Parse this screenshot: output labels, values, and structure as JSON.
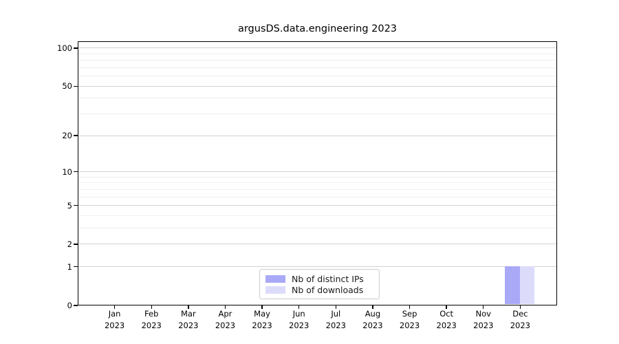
{
  "chart_data": {
    "type": "bar",
    "title": "argusDS.data.engineering 2023",
    "categories": [
      "Jan",
      "Feb",
      "Mar",
      "Apr",
      "May",
      "Jun",
      "Jul",
      "Aug",
      "Sep",
      "Oct",
      "Nov",
      "Dec"
    ],
    "category_year": "2023",
    "series": [
      {
        "name": "Nb of distinct IPs",
        "color": "#a9a9f7",
        "values": [
          0,
          0,
          0,
          0,
          0,
          0,
          0,
          0,
          0,
          0,
          0,
          1
        ]
      },
      {
        "name": "Nb of downloads",
        "color": "#dcdcfa",
        "values": [
          0,
          0,
          0,
          0,
          0,
          0,
          0,
          0,
          0,
          0,
          0,
          1
        ]
      }
    ],
    "xlabel": "",
    "ylabel": "",
    "y_axis": {
      "scale": "log10(1+v)",
      "ticks": [
        0,
        1,
        2,
        5,
        10,
        20,
        50,
        100
      ],
      "minor_ticks": [
        3,
        4,
        6,
        7,
        8,
        9,
        30,
        40,
        60,
        70,
        80,
        90
      ],
      "top_value": 113
    },
    "grid": {
      "major_color": "#d2d2d2",
      "minor_color": "#efefef",
      "enabled": true
    },
    "legend": {
      "position": "lower-center-inside",
      "border_color": "#cccccc"
    }
  }
}
